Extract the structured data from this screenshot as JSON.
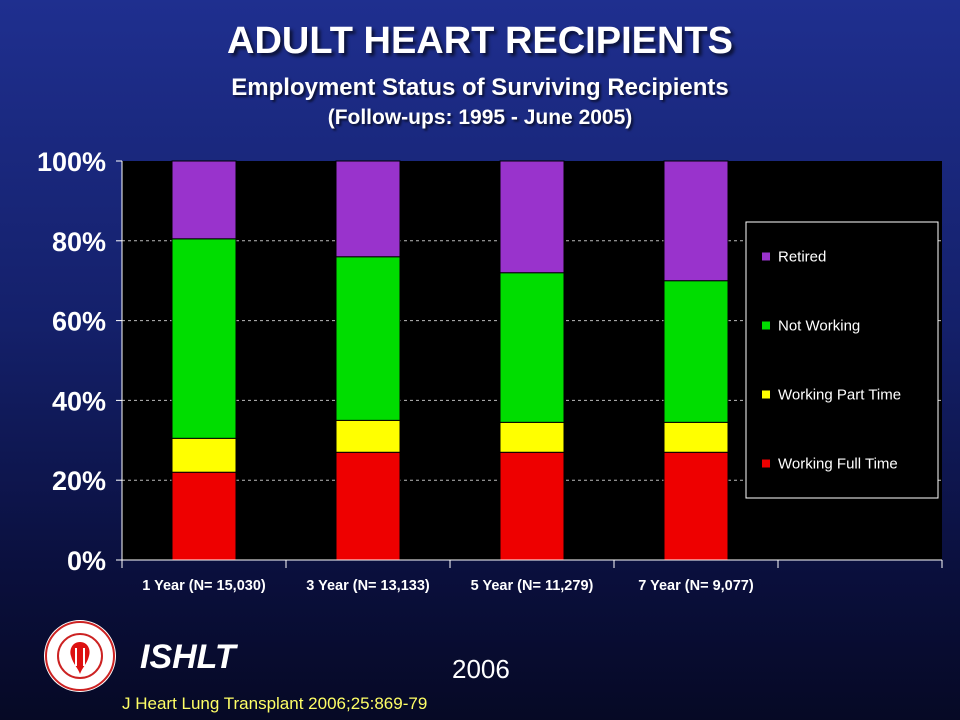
{
  "header": {
    "title": "ADULT HEART RECIPIENTS",
    "subtitle": "Employment Status of Surviving Recipients",
    "subtitle2": "(Follow-ups: 1995 - June 2005)"
  },
  "footer": {
    "org": "ISHLT",
    "year": "2006",
    "citation": "J Heart Lung Transplant 2006;25:869-79",
    "logo_text": "INTERNATIONAL SOCIETY FOR HEART & LUNG TRANSPLANTATION"
  },
  "chart_data": {
    "type": "bar",
    "stacked": true,
    "categories": [
      "1 Year  (N= 15,030)",
      "3 Year  (N= 13,133)",
      "5 Year  (N= 11,279)",
      "7 Year  (N= 9,077)"
    ],
    "series": [
      {
        "name": "Working Full Time",
        "color": "#ee0000",
        "values": [
          22,
          27,
          27,
          27
        ]
      },
      {
        "name": "Working Part Time",
        "color": "#ffff00",
        "values": [
          8.5,
          8,
          7.5,
          7.5
        ]
      },
      {
        "name": "Not Working",
        "color": "#00dd00",
        "values": [
          50,
          41,
          37.5,
          35.5
        ]
      },
      {
        "name": "Retired",
        "color": "#9933cc",
        "values": [
          19.5,
          24,
          28,
          30
        ]
      }
    ],
    "legend_order": [
      "Retired",
      "Not Working",
      "Working Part Time",
      "Working Full Time"
    ],
    "ylim": [
      0,
      100
    ],
    "yticks": [
      "0%",
      "20%",
      "40%",
      "60%",
      "80%",
      "100%"
    ],
    "grid": true,
    "legend_position": "right",
    "plot_background": "#000000"
  }
}
